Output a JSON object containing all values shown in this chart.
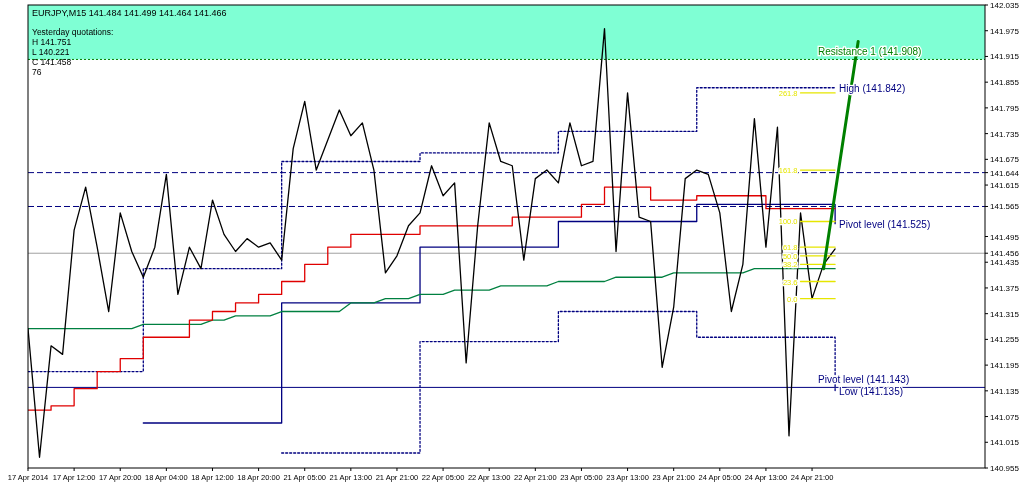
{
  "chart_data": {
    "type": "line",
    "title": "EURJPY,M15  141.484 141.499 141.464 141.466",
    "categories": [
      "17 Apr 2014",
      null,
      null,
      null,
      "17 Apr 12:00",
      null,
      null,
      null,
      "17 Apr 20:00",
      null,
      null,
      null,
      "18 Apr 04:00",
      null,
      null,
      null,
      "18 Apr 12:00",
      null,
      null,
      null,
      "18 Apr 20:00",
      null,
      null,
      null,
      "21 Apr 05:00",
      null,
      null,
      null,
      "21 Apr 13:00",
      null,
      null,
      null,
      "21 Apr 21:00",
      null,
      null,
      null,
      "22 Apr 05:00",
      null,
      null,
      null,
      "22 Apr 13:00",
      null,
      null,
      null,
      "22 Apr 21:00",
      null,
      null,
      null,
      "23 Apr 05:00",
      null,
      null,
      null,
      "23 Apr 13:00",
      null,
      null,
      null,
      "23 Apr 21:00",
      null,
      null,
      null,
      "24 Apr 05:00",
      null,
      null,
      null,
      "24 Apr 13:00",
      null,
      null,
      null,
      "24 Apr 21:00",
      null,
      null,
      null,
      null,
      null,
      null,
      null,
      null,
      null,
      null,
      null,
      null,
      null,
      null,
      null
    ],
    "series": [
      {
        "type": "step",
        "name": "High (141.842)",
        "color": "#000080",
        "line_style": "dotted",
        "values": [
          141.18,
          141.18,
          141.18,
          141.18,
          141.18,
          141.18,
          141.18,
          141.18,
          141.18,
          141.18,
          141.42,
          141.42,
          141.42,
          141.42,
          141.42,
          141.42,
          141.42,
          141.42,
          141.42,
          141.42,
          141.42,
          141.42,
          141.67,
          141.67,
          141.67,
          141.67,
          141.67,
          141.67,
          141.67,
          141.67,
          141.67,
          141.67,
          141.67,
          141.67,
          141.69,
          141.69,
          141.69,
          141.69,
          141.69,
          141.69,
          141.69,
          141.69,
          141.69,
          141.69,
          141.69,
          141.69,
          141.74,
          141.74,
          141.74,
          141.74,
          141.74,
          141.74,
          141.74,
          141.74,
          141.74,
          141.74,
          141.74,
          141.74,
          141.842,
          141.842,
          141.842,
          141.842,
          141.842,
          141.842,
          141.842,
          141.842,
          141.842,
          141.842,
          141.842,
          141.842,
          141.842,
          null,
          null,
          null,
          null,
          null,
          null,
          null,
          null,
          null,
          null,
          null,
          null,
          null
        ]
      },
      {
        "type": "step",
        "name": "Low (141.135)",
        "color": "#000080",
        "line_style": "dotted",
        "values": [
          null,
          null,
          null,
          null,
          null,
          null,
          null,
          null,
          null,
          null,
          null,
          null,
          null,
          null,
          null,
          null,
          null,
          null,
          null,
          null,
          null,
          null,
          140.99,
          140.99,
          140.99,
          140.99,
          140.99,
          140.99,
          140.99,
          140.99,
          140.99,
          140.99,
          140.99,
          140.99,
          141.25,
          141.25,
          141.25,
          141.25,
          141.25,
          141.25,
          141.25,
          141.25,
          141.25,
          141.25,
          141.25,
          141.25,
          141.32,
          141.32,
          141.32,
          141.32,
          141.32,
          141.32,
          141.32,
          141.32,
          141.32,
          141.32,
          141.32,
          141.32,
          141.26,
          141.26,
          141.26,
          141.26,
          141.26,
          141.26,
          141.26,
          141.26,
          141.26,
          141.26,
          141.26,
          141.26,
          141.135,
          null,
          null,
          null,
          null,
          null,
          null,
          null,
          null,
          null,
          null,
          null,
          null,
          null
        ]
      },
      {
        "type": "step",
        "name": "Pivot level (141.525)",
        "color": "#000080",
        "values": [
          null,
          null,
          null,
          null,
          null,
          null,
          null,
          null,
          null,
          null,
          141.06,
          141.06,
          141.06,
          141.06,
          141.06,
          141.06,
          141.06,
          141.06,
          141.06,
          141.06,
          141.06,
          141.06,
          141.34,
          141.34,
          141.34,
          141.34,
          141.34,
          141.34,
          141.34,
          141.34,
          141.34,
          141.34,
          141.34,
          141.34,
          141.47,
          141.47,
          141.47,
          141.47,
          141.47,
          141.47,
          141.47,
          141.47,
          141.47,
          141.47,
          141.47,
          141.47,
          141.53,
          141.53,
          141.53,
          141.53,
          141.53,
          141.53,
          141.53,
          141.53,
          141.53,
          141.53,
          141.53,
          141.53,
          141.57,
          141.57,
          141.57,
          141.57,
          141.57,
          141.57,
          141.57,
          141.57,
          141.57,
          141.57,
          141.57,
          141.57,
          141.525,
          null,
          null,
          null,
          null,
          null,
          null,
          null,
          null,
          null,
          null,
          null,
          null,
          null
        ]
      },
      {
        "color": "#008040",
        "values": [
          141.28,
          141.28,
          141.28,
          141.28,
          141.28,
          141.28,
          141.28,
          141.28,
          141.28,
          141.28,
          141.29,
          141.29,
          141.29,
          141.29,
          141.29,
          141.29,
          141.3,
          141.3,
          141.31,
          141.31,
          141.31,
          141.31,
          141.32,
          141.32,
          141.32,
          141.32,
          141.32,
          141.32,
          141.34,
          141.34,
          141.34,
          141.35,
          141.35,
          141.35,
          141.36,
          141.36,
          141.36,
          141.37,
          141.37,
          141.37,
          141.37,
          141.38,
          141.38,
          141.38,
          141.38,
          141.38,
          141.39,
          141.39,
          141.39,
          141.39,
          141.39,
          141.4,
          141.4,
          141.4,
          141.4,
          141.4,
          141.41,
          141.41,
          141.41,
          141.41,
          141.41,
          141.41,
          141.41,
          141.42,
          141.42,
          141.42,
          141.42,
          141.42,
          141.42,
          141.42,
          141.42,
          null,
          null,
          null,
          null,
          null,
          null,
          null,
          null,
          null,
          null,
          null,
          null,
          null
        ]
      },
      {
        "type": "step",
        "color": "#e00000",
        "values": [
          141.09,
          141.09,
          141.1,
          141.1,
          141.14,
          141.14,
          141.18,
          141.18,
          141.21,
          141.21,
          141.26,
          141.26,
          141.26,
          141.26,
          141.3,
          141.3,
          141.32,
          141.32,
          141.34,
          141.34,
          141.36,
          141.36,
          141.39,
          141.39,
          141.43,
          141.43,
          141.47,
          141.47,
          141.5,
          141.5,
          141.5,
          141.5,
          141.5,
          141.5,
          141.52,
          141.52,
          141.52,
          141.52,
          141.52,
          141.52,
          141.52,
          141.52,
          141.54,
          141.54,
          141.54,
          141.54,
          141.54,
          141.54,
          141.57,
          141.57,
          141.61,
          141.61,
          141.61,
          141.61,
          141.58,
          141.58,
          141.58,
          141.58,
          141.59,
          141.59,
          141.59,
          141.59,
          141.59,
          141.59,
          141.56,
          141.56,
          141.56,
          141.56,
          141.56,
          141.56,
          141.56,
          null,
          null,
          null,
          null,
          null,
          null,
          null,
          null,
          null,
          null,
          null,
          null,
          null
        ]
      },
      {
        "color": "#000000",
        "values": [
          141.28,
          140.98,
          141.24,
          141.22,
          141.51,
          141.61,
          141.47,
          141.32,
          141.55,
          141.46,
          141.4,
          141.47,
          141.64,
          141.36,
          141.47,
          141.42,
          141.58,
          141.5,
          141.46,
          141.49,
          141.47,
          141.48,
          141.44,
          141.7,
          141.81,
          141.65,
          141.72,
          141.79,
          141.73,
          141.76,
          141.65,
          141.41,
          141.45,
          141.52,
          141.55,
          141.66,
          141.59,
          141.62,
          141.2,
          141.52,
          141.76,
          141.67,
          141.66,
          141.44,
          141.63,
          141.65,
          141.62,
          141.76,
          141.66,
          141.67,
          141.98,
          141.46,
          141.83,
          141.54,
          141.53,
          141.19,
          141.33,
          141.63,
          141.65,
          141.64,
          141.55,
          141.32,
          141.43,
          141.77,
          141.47,
          141.75,
          141.03,
          141.55,
          141.35,
          141.43,
          141.466,
          null,
          null,
          null,
          null,
          null,
          null,
          null,
          null,
          null,
          null,
          null,
          null,
          null
        ]
      },
      {
        "name": "261.8",
        "color": "#e6e600",
        "values": [
          null,
          null,
          null,
          null,
          null,
          null,
          null,
          null,
          null,
          null,
          null,
          null,
          null,
          null,
          null,
          null,
          null,
          null,
          null,
          null,
          null,
          null,
          null,
          null,
          null,
          null,
          null,
          null,
          null,
          null,
          null,
          null,
          null,
          null,
          null,
          null,
          null,
          null,
          null,
          null,
          null,
          null,
          null,
          null,
          null,
          null,
          null,
          null,
          null,
          null,
          null,
          null,
          null,
          null,
          null,
          null,
          null,
          null,
          null,
          null,
          null,
          null,
          null,
          null,
          null,
          null,
          null,
          141.83,
          null,
          null,
          141.83,
          null,
          null,
          null,
          null,
          null,
          null,
          null,
          null,
          null,
          null,
          null,
          null,
          null
        ]
      },
      {
        "name": "161.8",
        "color": "#e6e600",
        "values": [
          null,
          null,
          null,
          null,
          null,
          null,
          null,
          null,
          null,
          null,
          null,
          null,
          null,
          null,
          null,
          null,
          null,
          null,
          null,
          null,
          null,
          null,
          null,
          null,
          null,
          null,
          null,
          null,
          null,
          null,
          null,
          null,
          null,
          null,
          null,
          null,
          null,
          null,
          null,
          null,
          null,
          null,
          null,
          null,
          null,
          null,
          null,
          null,
          null,
          null,
          null,
          null,
          null,
          null,
          null,
          null,
          null,
          null,
          null,
          null,
          null,
          null,
          null,
          null,
          null,
          null,
          null,
          141.65,
          null,
          null,
          141.65,
          null,
          null,
          null,
          null,
          null,
          null,
          null,
          null,
          null,
          null,
          null,
          null,
          null
        ]
      },
      {
        "name": "100.0",
        "color": "#e6e600",
        "values": [
          null,
          null,
          null,
          null,
          null,
          null,
          null,
          null,
          null,
          null,
          null,
          null,
          null,
          null,
          null,
          null,
          null,
          null,
          null,
          null,
          null,
          null,
          null,
          null,
          null,
          null,
          null,
          null,
          null,
          null,
          null,
          null,
          null,
          null,
          null,
          null,
          null,
          null,
          null,
          null,
          null,
          null,
          null,
          null,
          null,
          null,
          null,
          null,
          null,
          null,
          null,
          null,
          null,
          null,
          null,
          null,
          null,
          null,
          null,
          null,
          null,
          null,
          null,
          null,
          null,
          null,
          null,
          141.53,
          null,
          null,
          141.53,
          null,
          null,
          null,
          null,
          null,
          null,
          null,
          null,
          null,
          null,
          null,
          null,
          null
        ]
      },
      {
        "name": "61.8",
        "color": "#e6e600",
        "values": [
          null,
          null,
          null,
          null,
          null,
          null,
          null,
          null,
          null,
          null,
          null,
          null,
          null,
          null,
          null,
          null,
          null,
          null,
          null,
          null,
          null,
          null,
          null,
          null,
          null,
          null,
          null,
          null,
          null,
          null,
          null,
          null,
          null,
          null,
          null,
          null,
          null,
          null,
          null,
          null,
          null,
          null,
          null,
          null,
          null,
          null,
          null,
          null,
          null,
          null,
          null,
          null,
          null,
          null,
          null,
          null,
          null,
          null,
          null,
          null,
          null,
          null,
          null,
          null,
          null,
          null,
          null,
          141.47,
          null,
          null,
          141.47,
          null,
          null,
          null,
          null,
          null,
          null,
          null,
          null,
          null,
          null,
          null,
          null,
          null
        ]
      },
      {
        "name": "50.0",
        "color": "#e6e600",
        "values": [
          null,
          null,
          null,
          null,
          null,
          null,
          null,
          null,
          null,
          null,
          null,
          null,
          null,
          null,
          null,
          null,
          null,
          null,
          null,
          null,
          null,
          null,
          null,
          null,
          null,
          null,
          null,
          null,
          null,
          null,
          null,
          null,
          null,
          null,
          null,
          null,
          null,
          null,
          null,
          null,
          null,
          null,
          null,
          null,
          null,
          null,
          null,
          null,
          null,
          null,
          null,
          null,
          null,
          null,
          null,
          null,
          null,
          null,
          null,
          null,
          null,
          null,
          null,
          null,
          null,
          null,
          null,
          141.45,
          null,
          null,
          141.45,
          null,
          null,
          null,
          null,
          null,
          null,
          null,
          null,
          null,
          null,
          null,
          null,
          null
        ]
      },
      {
        "name": "38.2",
        "color": "#e6e600",
        "values": [
          null,
          null,
          null,
          null,
          null,
          null,
          null,
          null,
          null,
          null,
          null,
          null,
          null,
          null,
          null,
          null,
          null,
          null,
          null,
          null,
          null,
          null,
          null,
          null,
          null,
          null,
          null,
          null,
          null,
          null,
          null,
          null,
          null,
          null,
          null,
          null,
          null,
          null,
          null,
          null,
          null,
          null,
          null,
          null,
          null,
          null,
          null,
          null,
          null,
          null,
          null,
          null,
          null,
          null,
          null,
          null,
          null,
          null,
          null,
          null,
          null,
          null,
          null,
          null,
          null,
          null,
          null,
          141.43,
          null,
          null,
          141.43,
          null,
          null,
          null,
          null,
          null,
          null,
          null,
          null,
          null,
          null,
          null,
          null,
          null
        ]
      },
      {
        "name": "23.6",
        "color": "#e6e600",
        "values": [
          null,
          null,
          null,
          null,
          null,
          null,
          null,
          null,
          null,
          null,
          null,
          null,
          null,
          null,
          null,
          null,
          null,
          null,
          null,
          null,
          null,
          null,
          null,
          null,
          null,
          null,
          null,
          null,
          null,
          null,
          null,
          null,
          null,
          null,
          null,
          null,
          null,
          null,
          null,
          null,
          null,
          null,
          null,
          null,
          null,
          null,
          null,
          null,
          null,
          null,
          null,
          null,
          null,
          null,
          null,
          null,
          null,
          null,
          null,
          null,
          null,
          null,
          null,
          null,
          null,
          null,
          null,
          141.39,
          null,
          null,
          141.39,
          null,
          null,
          null,
          null,
          null,
          null,
          null,
          null,
          null,
          null,
          null,
          null,
          null
        ]
      },
      {
        "name": "0.0",
        "color": "#e6e600",
        "values": [
          null,
          null,
          null,
          null,
          null,
          null,
          null,
          null,
          null,
          null,
          null,
          null,
          null,
          null,
          null,
          null,
          null,
          null,
          null,
          null,
          null,
          null,
          null,
          null,
          null,
          null,
          null,
          null,
          null,
          null,
          null,
          null,
          null,
          null,
          null,
          null,
          null,
          null,
          null,
          null,
          null,
          null,
          null,
          null,
          null,
          null,
          null,
          null,
          null,
          null,
          null,
          null,
          null,
          null,
          null,
          null,
          null,
          null,
          null,
          null,
          null,
          null,
          null,
          null,
          null,
          null,
          null,
          141.35,
          null,
          null,
          141.35,
          null,
          null,
          null,
          null,
          null,
          null,
          null,
          null,
          null,
          null,
          null,
          null,
          null
        ]
      },
      {
        "color": "#008000",
        "values": [
          null,
          null,
          null,
          null,
          null,
          null,
          null,
          null,
          null,
          null,
          null,
          null,
          null,
          null,
          null,
          null,
          null,
          null,
          null,
          null,
          null,
          null,
          null,
          null,
          null,
          null,
          null,
          null,
          null,
          null,
          null,
          null,
          null,
          null,
          null,
          null,
          null,
          null,
          null,
          null,
          null,
          null,
          null,
          null,
          null,
          null,
          null,
          null,
          null,
          null,
          null,
          null,
          null,
          null,
          null,
          null,
          null,
          null,
          null,
          null,
          null,
          null,
          null,
          null,
          null,
          null,
          null,
          null,
          null,
          141.42,
          null,
          null,
          141.95,
          null,
          null,
          null,
          null,
          null,
          null,
          null,
          null,
          null,
          null,
          null
        ]
      }
    ],
    "ylim": [
      140.955,
      142.035
    ],
    "yticks": [
      142.035,
      141.975,
      141.915,
      141.855,
      141.795,
      141.735,
      141.675,
      {
        "value": 141.644,
        "label": "141.644"
      },
      141.615,
      {
        "value": 141.565,
        "label": "141.565"
      },
      141.495,
      {
        "value": 141.456,
        "label": "141.456"
      },
      141.435,
      141.375,
      141.315,
      141.255,
      141.195,
      141.135,
      141.075,
      141.015,
      140.955
    ],
    "bands": [
      {
        "axis": "y",
        "from": 141.908,
        "to": 142.035,
        "color": "#7fffd4"
      }
    ],
    "ref_lines": [
      {
        "axis": "y",
        "value": 141.908,
        "label": "Resistance 1 (141.908)",
        "color": "#008000",
        "line_style": "dotted"
      },
      {
        "axis": "y",
        "value": 141.644,
        "color": "#000080",
        "line_style": "dashed"
      },
      {
        "axis": "y",
        "value": 141.565,
        "color": "#000080",
        "line_style": "dashed"
      },
      {
        "axis": "y",
        "value": 141.456,
        "color": "#a0a0a0",
        "line_style": "solid"
      },
      {
        "axis": "y",
        "value": 141.143,
        "label": "Pivot level (141.143)",
        "color": "#000080",
        "line_style": "solid"
      }
    ],
    "annotations": [
      "Yesterday quotations:",
      "H 141.751",
      "L 140.221",
      "C 141.458",
      "76"
    ]
  }
}
